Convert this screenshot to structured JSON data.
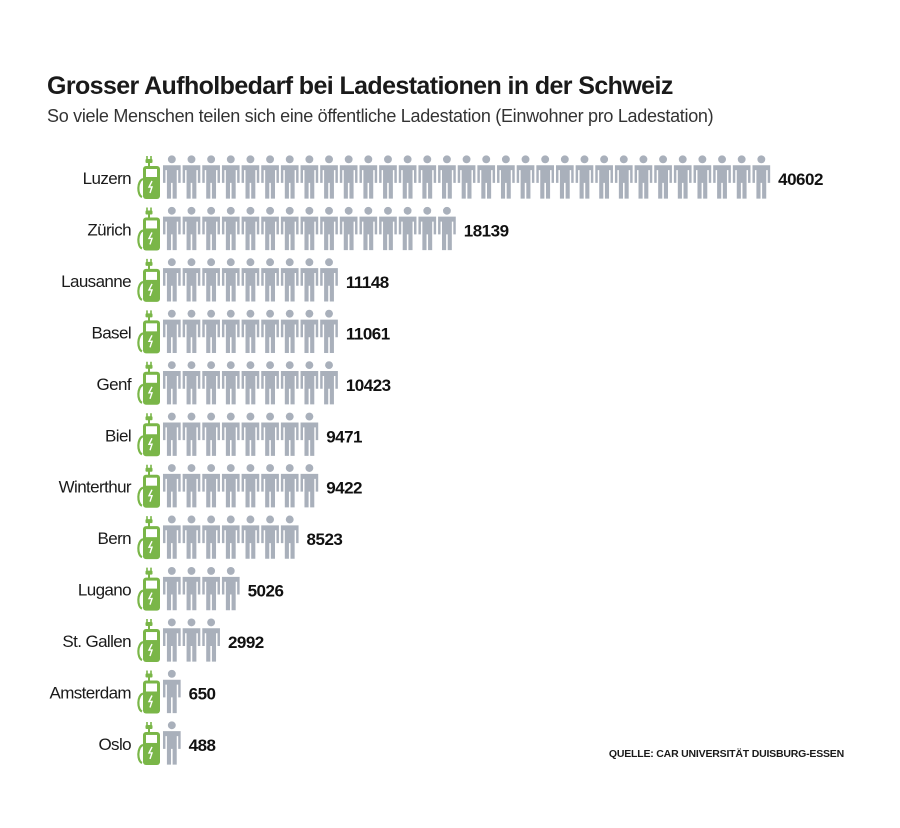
{
  "title": "Grosser Aufholbedarf bei Ladestationen in der Schweiz",
  "subtitle": "So viele Menschen teilen sich eine öffentliche Ladestation (Einwohner pro Ladestation)",
  "source": "QUELLE: CAR UNIVERSITÄT DUISBURG-ESSEN",
  "colors": {
    "charger": "#7ab648",
    "person": "#a9b0bb",
    "text": "#1a1a1a"
  },
  "icons": {
    "row_icon": "charging-station-icon",
    "unit_icon": "person-icon"
  },
  "chart_data": {
    "type": "pictogram-bar",
    "title": "Grosser Aufholbedarf bei Ladestationen in der Schweiz",
    "subtitle": "So viele Menschen teilen sich eine öffentliche Ladestation (Einwohner pro Ladestation)",
    "categories": [
      "Luzern",
      "Zürich",
      "Lausanne",
      "Basel",
      "Genf",
      "Biel",
      "Winterthur",
      "Bern",
      "Lugano",
      "St. Gallen",
      "Amsterdam",
      "Oslo"
    ],
    "values": [
      40602,
      18139,
      11148,
      11061,
      10423,
      9471,
      9422,
      8523,
      5026,
      2992,
      650,
      488
    ],
    "icon_counts": [
      31,
      15,
      9,
      9,
      9,
      8,
      8,
      7,
      4,
      3,
      1,
      1
    ]
  }
}
